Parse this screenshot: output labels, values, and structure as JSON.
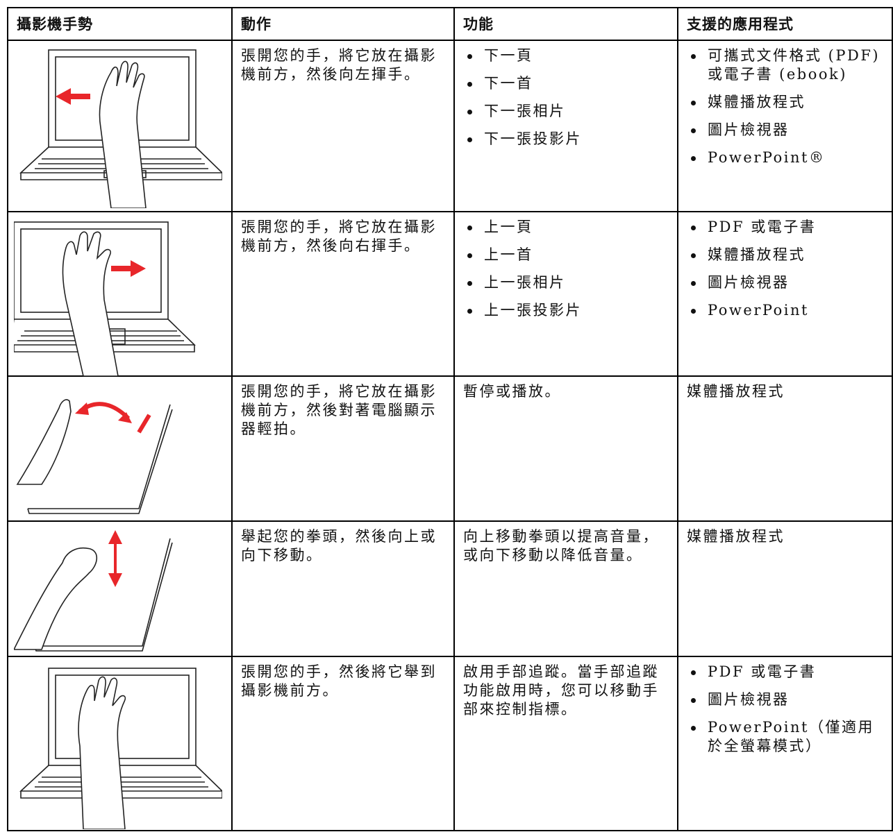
{
  "table": {
    "header": [
      "攝影機手勢",
      "動作",
      "功能",
      "支援的應用程式"
    ],
    "rows": [
      {
        "action": "張開您的手，將它放在攝影機前方，然後向左揮手。",
        "functions": [
          "下一頁",
          "下一首",
          "下一張相片",
          "下一張投影片"
        ],
        "apps": [
          "可攜式文件格式 (PDF) 或電子書 (ebook)",
          "媒體播放程式",
          "圖片檢視器",
          "PowerPoint®"
        ]
      },
      {
        "action": "張開您的手，將它放在攝影機前方，然後向右揮手。",
        "functions": [
          "上一頁",
          "上一首",
          "上一張相片",
          "上一張投影片"
        ],
        "apps": [
          "PDF 或電子書",
          "媒體播放程式",
          "圖片檢視器",
          "PowerPoint"
        ]
      },
      {
        "action": "張開您的手，將它放在攝影機前方，然後對著電腦顯示器輕拍。",
        "function": "暫停或播放。",
        "app": "媒體播放程式"
      },
      {
        "action": "舉起您的拳頭，然後向上或向下移動。",
        "function": "向上移動拳頭以提高音量，或向下移動以降低音量。",
        "app": "媒體播放程式"
      },
      {
        "action": "張開您的手，然後將它舉到攝影機前方。",
        "function": "啟用手部追蹤。當手部追蹤功能啟用時，您可以移動手部來控制指標。",
        "apps": [
          "PDF 或電子書",
          "圖片檢視器",
          "PowerPoint（僅適用於全螢幕模式）"
        ]
      }
    ]
  }
}
